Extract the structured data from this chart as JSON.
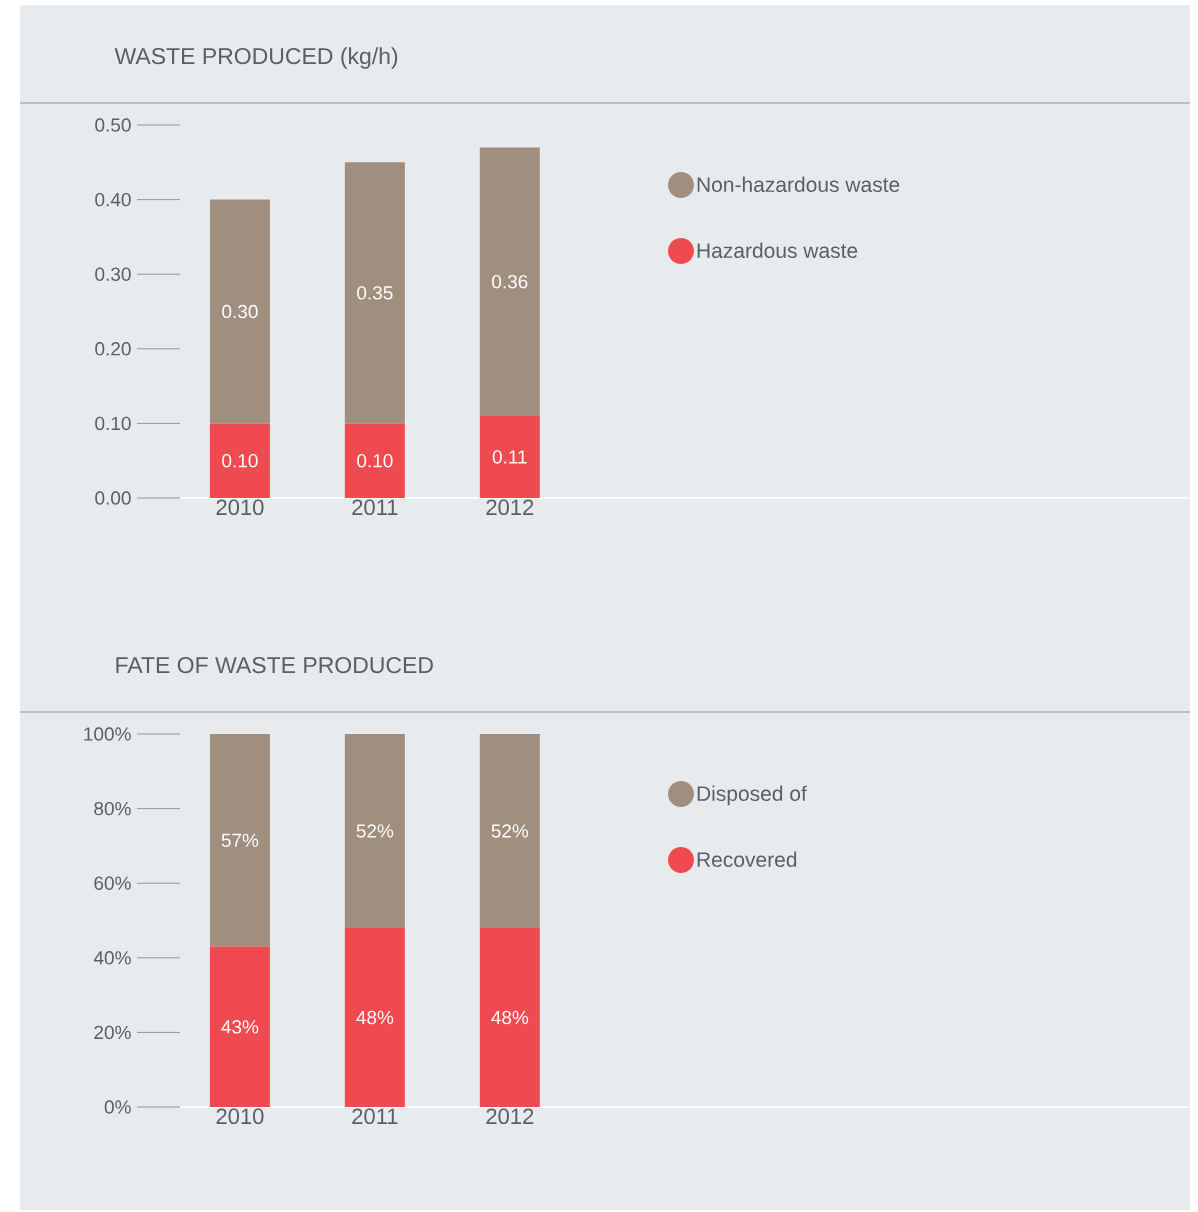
{
  "chart_data": [
    {
      "type": "bar",
      "title": "WASTE PRODUCED (kg/h)",
      "categories": [
        "2010",
        "2011",
        "2012"
      ],
      "stacked": true,
      "legend": "right",
      "series": [
        {
          "name": "Hazardous waste",
          "color": "#ef4a50",
          "values": [
            0.1,
            0.1,
            0.11
          ],
          "value_labels": [
            "0.10",
            "0.10",
            "0.11"
          ]
        },
        {
          "name": "Non-hazardous waste",
          "color": "#a08e7e",
          "values": [
            0.3,
            0.35,
            0.36
          ],
          "value_labels": [
            "0.30",
            "0.35",
            "0.36"
          ]
        }
      ],
      "ylim": [
        0,
        0.5
      ],
      "yticks": [
        {
          "value": 0,
          "label": "0.00"
        },
        {
          "value": 0.1,
          "label": "0.10"
        },
        {
          "value": 0.2,
          "label": "0.20"
        },
        {
          "value": 0.3,
          "label": "0.30"
        },
        {
          "value": 0.4,
          "label": "0.40"
        },
        {
          "value": 0.5,
          "label": "0.50"
        }
      ]
    },
    {
      "type": "bar",
      "title": "FATE OF WASTE PRODUCED",
      "categories": [
        "2010",
        "2011",
        "2012"
      ],
      "stacked": true,
      "legend": "right",
      "series": [
        {
          "name": "Recovered",
          "color": "#ef4a50",
          "values": [
            43,
            48,
            48
          ],
          "value_labels": [
            "43%",
            "48%",
            "48%"
          ]
        },
        {
          "name": "Disposed of",
          "color": "#a08e7e",
          "values": [
            57,
            52,
            52
          ],
          "value_labels": [
            "57%",
            "52%",
            "52%"
          ]
        }
      ],
      "ylim": [
        0,
        100
      ],
      "yticks": [
        {
          "value": 0,
          "label": "0%"
        },
        {
          "value": 20,
          "label": "20%"
        },
        {
          "value": 40,
          "label": "40%"
        },
        {
          "value": 60,
          "label": "60%"
        },
        {
          "value": 80,
          "label": "80%"
        },
        {
          "value": 100,
          "label": "100%"
        }
      ]
    }
  ]
}
